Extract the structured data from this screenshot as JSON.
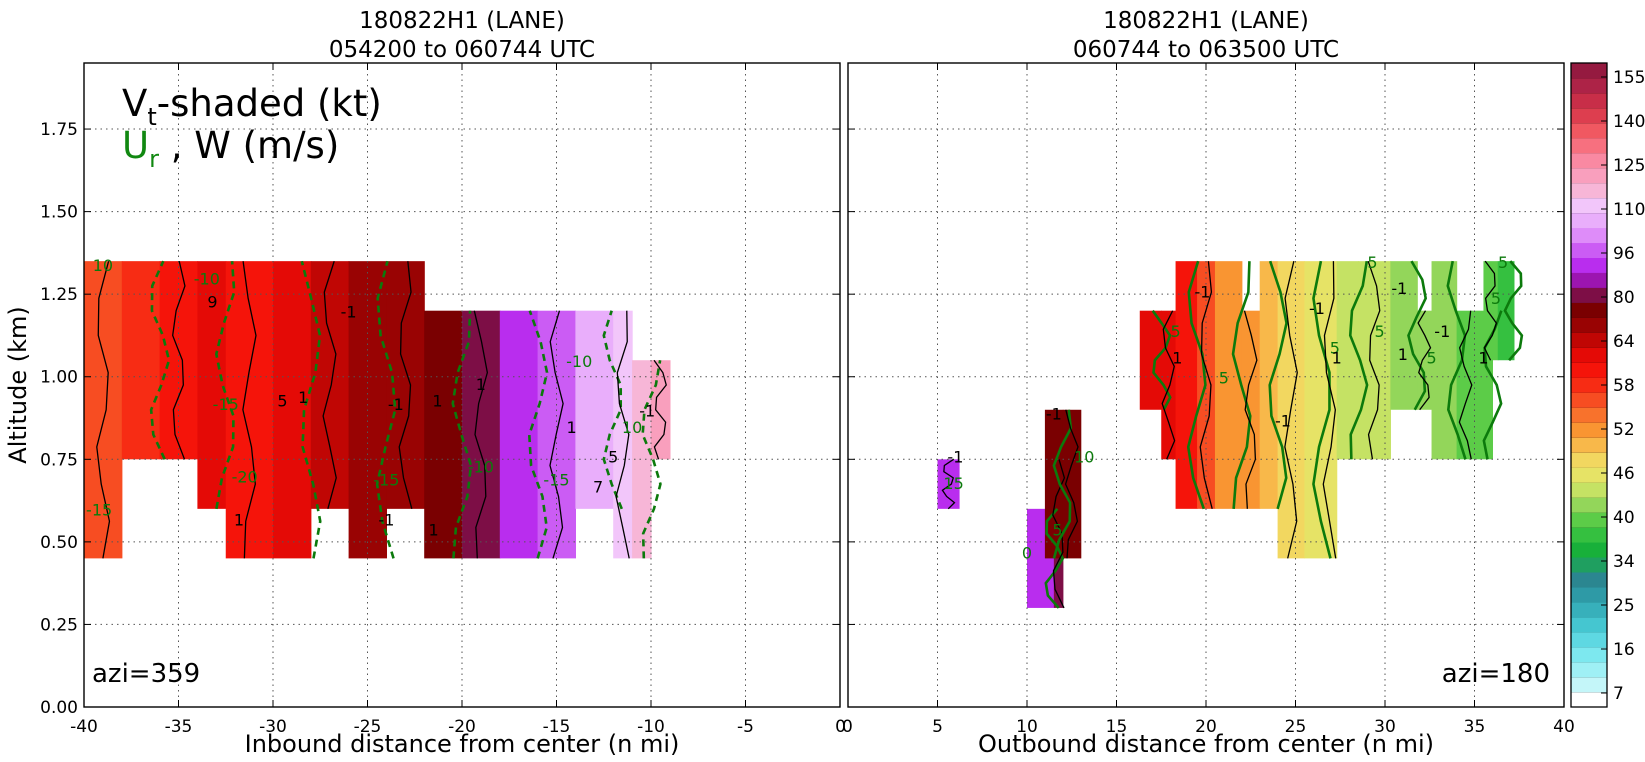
{
  "chart_data": [
    {
      "type": "heatmap",
      "title_line1": "180822H1 (LANE)",
      "title_line2": "054200 to 060744 UTC",
      "xlabel": "Inbound distance from center (n mi)",
      "ylabel": "Altitude (km)",
      "xlim": [
        -40,
        0
      ],
      "ylim": [
        0,
        1.95
      ],
      "xticks": [
        -40,
        -35,
        -30,
        -25,
        -20,
        -15,
        -10,
        -5,
        0
      ],
      "yticks": [
        0.0,
        0.25,
        0.5,
        0.75,
        1.0,
        1.25,
        1.5,
        1.75
      ],
      "grid": true,
      "azimuth_label": "azi=359",
      "legend_line1": "V",
      "legend_line1_sub": "t",
      "legend_line1_rest": "-shaded (kt)",
      "legend_line2_ur": "U",
      "legend_line2_sub": "r",
      "legend_line2_rest": " , W (m/s)",
      "shaded_columns": [
        {
          "x0": -40,
          "x1": -38,
          "y0": 0.45,
          "y1": 1.35,
          "vt": 66
        },
        {
          "x0": -38,
          "x1": -36,
          "y0": 0.75,
          "y1": 1.35,
          "vt": 72
        },
        {
          "x0": -36,
          "x1": -34,
          "y0": 0.75,
          "y1": 1.35,
          "vt": 76
        },
        {
          "x0": -34,
          "x1": -32.5,
          "y0": 0.6,
          "y1": 1.35,
          "vt": 80
        },
        {
          "x0": -32.5,
          "x1": -30,
          "y0": 0.45,
          "y1": 1.35,
          "vt": 78
        },
        {
          "x0": -30,
          "x1": -28,
          "y0": 0.45,
          "y1": 1.35,
          "vt": 82
        },
        {
          "x0": -28,
          "x1": -26,
          "y0": 0.6,
          "y1": 1.35,
          "vt": 88
        },
        {
          "x0": -26,
          "x1": -24,
          "y0": 0.45,
          "y1": 1.35,
          "vt": 92
        },
        {
          "x0": -24,
          "x1": -22,
          "y0": 0.6,
          "y1": 1.35,
          "vt": 95
        },
        {
          "x0": -22,
          "x1": -20,
          "y0": 0.45,
          "y1": 1.2,
          "vt": 100
        },
        {
          "x0": -20,
          "x1": -18,
          "y0": 0.45,
          "y1": 1.2,
          "vt": 105
        },
        {
          "x0": -18,
          "x1": -16,
          "y0": 0.45,
          "y1": 1.2,
          "vt": 110
        },
        {
          "x0": -16,
          "x1": -14,
          "y0": 0.45,
          "y1": 1.2,
          "vt": 118
        },
        {
          "x0": -14,
          "x1": -12,
          "y0": 0.6,
          "y1": 1.2,
          "vt": 125
        },
        {
          "x0": -12,
          "x1": -11,
          "y0": 0.45,
          "y1": 1.2,
          "vt": 132
        },
        {
          "x0": -11,
          "x1": -10,
          "y0": 0.45,
          "y1": 1.05,
          "vt": 136
        },
        {
          "x0": -10,
          "x1": -9,
          "y0": 0.75,
          "y1": 1.05,
          "vt": 142
        }
      ],
      "contour_labels": [
        {
          "text": "10",
          "x": -39,
          "y": 1.32,
          "color": "green"
        },
        {
          "text": "-10",
          "x": -33.5,
          "y": 1.28,
          "color": "green"
        },
        {
          "text": "9",
          "x": -33.2,
          "y": 1.21,
          "color": "black"
        },
        {
          "text": "-15",
          "x": -32.5,
          "y": 0.9,
          "color": "green"
        },
        {
          "text": "5",
          "x": -29.5,
          "y": 0.91,
          "color": "black"
        },
        {
          "text": "1",
          "x": -28.4,
          "y": 0.92,
          "color": "black"
        },
        {
          "text": "-20",
          "x": -31.5,
          "y": 0.68,
          "color": "green"
        },
        {
          "text": "1",
          "x": -31.8,
          "y": 0.55,
          "color": "black"
        },
        {
          "text": "-15",
          "x": -39.2,
          "y": 0.58,
          "color": "green"
        },
        {
          "text": "-1",
          "x": -26,
          "y": 1.18,
          "color": "black"
        },
        {
          "text": "-15",
          "x": -24,
          "y": 0.67,
          "color": "green"
        },
        {
          "text": "-1",
          "x": -24,
          "y": 0.55,
          "color": "black"
        },
        {
          "text": "-1",
          "x": -23.5,
          "y": 0.9,
          "color": "black"
        },
        {
          "text": "1",
          "x": -21.3,
          "y": 0.91,
          "color": "black"
        },
        {
          "text": "1",
          "x": -21.5,
          "y": 0.52,
          "color": "black"
        },
        {
          "text": "1",
          "x": -19,
          "y": 0.96,
          "color": "black"
        },
        {
          "text": "-10",
          "x": -19,
          "y": 0.71,
          "color": "green"
        },
        {
          "text": "1",
          "x": -14.2,
          "y": 0.83,
          "color": "black"
        },
        {
          "text": "-15",
          "x": -15,
          "y": 0.67,
          "color": "green"
        },
        {
          "text": "-10",
          "x": -13.8,
          "y": 1.03,
          "color": "green"
        },
        {
          "text": "5",
          "x": -12,
          "y": 0.74,
          "color": "black"
        },
        {
          "text": "7",
          "x": -12.8,
          "y": 0.65,
          "color": "black"
        },
        {
          "text": "10",
          "x": -11,
          "y": 0.83,
          "color": "green"
        },
        {
          "text": "-1",
          "x": -10.2,
          "y": 0.88,
          "color": "black"
        }
      ]
    },
    {
      "type": "heatmap",
      "title_line1": "180822H1 (LANE)",
      "title_line2": "060744 to 063500 UTC",
      "xlabel": "Outbound distance from center (n mi)",
      "xlim": [
        0,
        40
      ],
      "ylim": [
        0,
        1.95
      ],
      "xticks": [
        0,
        5,
        10,
        15,
        20,
        25,
        30,
        35,
        40
      ],
      "grid": true,
      "azimuth_label": "azi=180",
      "shaded_columns": [
        {
          "x0": 5,
          "x1": 6.2,
          "y0": 0.6,
          "y1": 0.75,
          "vt": 110
        },
        {
          "x0": 10,
          "x1": 11.5,
          "y0": 0.3,
          "y1": 0.6,
          "vt": 112
        },
        {
          "x0": 11.5,
          "x1": 12,
          "y0": 0.3,
          "y1": 0.75,
          "vt": 105
        },
        {
          "x0": 11,
          "x1": 12,
          "y0": 0.45,
          "y1": 0.9,
          "vt": 100
        },
        {
          "x0": 12,
          "x1": 13,
          "y0": 0.45,
          "y1": 0.9,
          "vt": 96
        },
        {
          "x0": 16.3,
          "x1": 17.5,
          "y0": 0.9,
          "y1": 1.2,
          "vt": 82
        },
        {
          "x0": 17.5,
          "x1": 18.3,
          "y0": 0.75,
          "y1": 1.2,
          "vt": 80
        },
        {
          "x0": 18.3,
          "x1": 19.5,
          "y0": 0.6,
          "y1": 1.35,
          "vt": 74
        },
        {
          "x0": 19.5,
          "x1": 20.5,
          "y0": 0.6,
          "y1": 1.35,
          "vt": 66
        },
        {
          "x0": 20.5,
          "x1": 22,
          "y0": 0.6,
          "y1": 1.35,
          "vt": 60
        },
        {
          "x0": 22,
          "x1": 23,
          "y0": 0.6,
          "y1": 1.2,
          "vt": 58
        },
        {
          "x0": 23,
          "x1": 24,
          "y0": 0.6,
          "y1": 1.35,
          "vt": 56
        },
        {
          "x0": 24,
          "x1": 25.5,
          "y0": 0.45,
          "y1": 1.35,
          "vt": 53
        },
        {
          "x0": 25.5,
          "x1": 26.5,
          "y0": 0.45,
          "y1": 1.35,
          "vt": 51
        },
        {
          "x0": 26.5,
          "x1": 27.3,
          "y0": 0.45,
          "y1": 1.35,
          "vt": 49
        },
        {
          "x0": 27.3,
          "x1": 28.5,
          "y0": 0.75,
          "y1": 1.35,
          "vt": 48
        },
        {
          "x0": 28.5,
          "x1": 30.3,
          "y0": 0.75,
          "y1": 1.35,
          "vt": 47
        },
        {
          "x0": 30.3,
          "x1": 31.8,
          "y0": 0.9,
          "y1": 1.35,
          "vt": 45
        },
        {
          "x0": 31.8,
          "x1": 32.6,
          "y0": 0.9,
          "y1": 1.2,
          "vt": 44
        },
        {
          "x0": 32.6,
          "x1": 34,
          "y0": 0.75,
          "y1": 1.35,
          "vt": 43
        },
        {
          "x0": 34,
          "x1": 35,
          "y0": 0.75,
          "y1": 1.2,
          "vt": 42
        },
        {
          "x0": 35,
          "x1": 36,
          "y0": 0.75,
          "y1": 1.2,
          "vt": 41
        },
        {
          "x0": 35.5,
          "x1": 36.3,
          "y0": 1.05,
          "y1": 1.35,
          "vt": 40
        },
        {
          "x0": 36.3,
          "x1": 37.2,
          "y0": 1.05,
          "y1": 1.35,
          "vt": 38
        }
      ],
      "contour_labels": [
        {
          "text": "-1",
          "x": 6,
          "y": 0.74,
          "color": "black"
        },
        {
          "text": "15",
          "x": 5.9,
          "y": 0.66,
          "color": "green"
        },
        {
          "text": "-1",
          "x": 11.5,
          "y": 0.87,
          "color": "black"
        },
        {
          "text": "10",
          "x": 13.2,
          "y": 0.74,
          "color": "green"
        },
        {
          "text": "5",
          "x": 11.7,
          "y": 0.52,
          "color": "green"
        },
        {
          "text": "0",
          "x": 10,
          "y": 0.45,
          "color": "green"
        },
        {
          "text": "5",
          "x": 18.3,
          "y": 1.12,
          "color": "green"
        },
        {
          "text": "1",
          "x": 18.4,
          "y": 1.04,
          "color": "black"
        },
        {
          "text": "-1",
          "x": 19.8,
          "y": 1.24,
          "color": "black"
        },
        {
          "text": "5",
          "x": 21,
          "y": 0.98,
          "color": "green"
        },
        {
          "text": "-1",
          "x": 24.3,
          "y": 0.85,
          "color": "black"
        },
        {
          "text": "-1",
          "x": 26.2,
          "y": 1.19,
          "color": "black"
        },
        {
          "text": "5",
          "x": 27.2,
          "y": 1.07,
          "color": "green"
        },
        {
          "text": "1",
          "x": 27.3,
          "y": 1.04,
          "color": "black"
        },
        {
          "text": "5",
          "x": 29.3,
          "y": 1.33,
          "color": "green"
        },
        {
          "text": "-1",
          "x": 30.8,
          "y": 1.25,
          "color": "black"
        },
        {
          "text": "5",
          "x": 29.7,
          "y": 1.12,
          "color": "green"
        },
        {
          "text": "1",
          "x": 31,
          "y": 1.05,
          "color": "black"
        },
        {
          "text": "-1",
          "x": 33.2,
          "y": 1.12,
          "color": "black"
        },
        {
          "text": "5",
          "x": 32.6,
          "y": 1.04,
          "color": "green"
        },
        {
          "text": "1",
          "x": 35.5,
          "y": 1.04,
          "color": "black"
        },
        {
          "text": "5",
          "x": 36.2,
          "y": 1.22,
          "color": "green"
        },
        {
          "text": "5",
          "x": 36.6,
          "y": 1.33,
          "color": "green"
        }
      ]
    }
  ],
  "colorbar": {
    "levels": [
      4,
      7,
      10,
      13,
      16,
      19,
      22,
      25,
      28,
      31,
      34,
      37,
      40,
      43,
      46,
      49,
      52,
      55,
      58,
      61,
      64,
      69,
      74,
      80,
      85,
      90,
      96,
      101,
      106,
      110,
      115,
      120,
      125,
      130,
      135,
      140,
      145,
      150,
      155,
      160
    ],
    "tick_labels": [
      "7",
      "16",
      "25",
      "34",
      "40",
      "46",
      "52",
      "58",
      "64",
      "80",
      "96",
      "110",
      "125",
      "140",
      "155"
    ],
    "colors": [
      "#ffffff",
      "#c4f6f9",
      "#9ff0f5",
      "#7de8ef",
      "#5ed8e2",
      "#45c6d0",
      "#37b0bb",
      "#2e9aa6",
      "#2b8690",
      "#1f9f60",
      "#18b03a",
      "#35c040",
      "#5ccc48",
      "#93d65a",
      "#c5e264",
      "#e6e366",
      "#f2d760",
      "#f8b84a",
      "#f99532",
      "#f8722c",
      "#f74d22",
      "#f72c14",
      "#f5140a",
      "#e40a06",
      "#c00604",
      "#990303",
      "#7a0001",
      "#7d0e46",
      "#9c15b0",
      "#b92dee",
      "#cb5cf4",
      "#de8cf9",
      "#e9aefb",
      "#f2c6fa",
      "#f7b6d7",
      "#f99fbd",
      "#f989a2",
      "#f7707f",
      "#f05861",
      "#dd3e4f",
      "#c82e48",
      "#ad2347",
      "#951a40"
    ]
  }
}
